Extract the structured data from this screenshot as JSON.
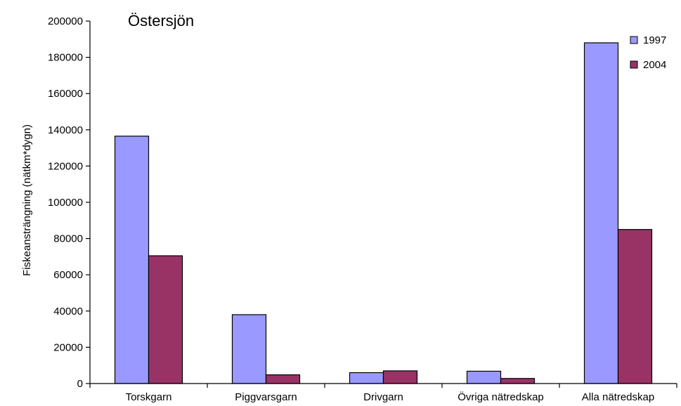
{
  "chart_data": {
    "type": "bar",
    "title": "Östersjön",
    "xlabel": "",
    "ylabel": "Fiskeansträngning (nätkm*dygn)",
    "categories": [
      "Torskgarn",
      "Piggvarsgarn",
      "Drivgarn",
      "Övriga nätredskap",
      "Alla nätredskap"
    ],
    "series": [
      {
        "name": "1997",
        "color": "#9999ff",
        "values": [
          136500,
          38000,
          6000,
          6800,
          188000
        ]
      },
      {
        "name": "2004",
        "color": "#993366",
        "values": [
          70500,
          4800,
          7000,
          2800,
          85000
        ]
      }
    ],
    "ylim": [
      0,
      200000
    ],
    "yticks": [
      0,
      20000,
      40000,
      60000,
      80000,
      100000,
      120000,
      140000,
      160000,
      180000,
      200000
    ],
    "grid": false,
    "legend_position": "top-right"
  }
}
